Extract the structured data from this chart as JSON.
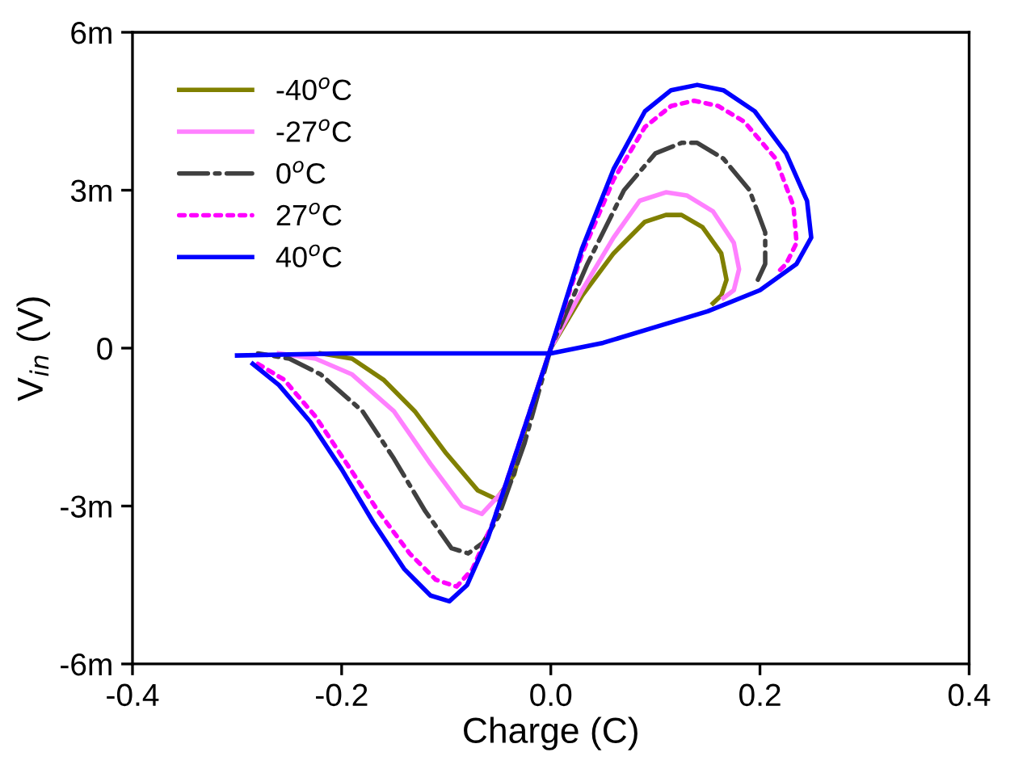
{
  "chart_data": {
    "type": "line",
    "xlabel": "Charge (C)",
    "ylabel": "V$_{in}$ (V)",
    "xlim": [
      -0.4,
      0.4
    ],
    "ylim": [
      -6,
      6
    ],
    "xticks": [
      {
        "value": -0.4,
        "label": "-0.4"
      },
      {
        "value": -0.2,
        "label": "-0.2"
      },
      {
        "value": 0.0,
        "label": "0.0"
      },
      {
        "value": 0.2,
        "label": "0.2"
      },
      {
        "value": 0.4,
        "label": "0.4"
      }
    ],
    "yticks": [
      {
        "value": -6,
        "label": "-6m"
      },
      {
        "value": -3,
        "label": "-3m"
      },
      0,
      {
        "value": 3,
        "label": "3m"
      },
      {
        "value": 6,
        "label": "6m"
      }
    ],
    "grid": false,
    "legend": "top left",
    "marker": "none",
    "series": [
      {
        "name": "-40$^{o}$C",
        "color": "#808000",
        "line_style": "solid",
        "x": [
          0.155,
          0.163,
          0.168,
          0.163,
          0.145,
          0.125,
          0.11,
          0.09,
          0.06,
          0.03,
          0,
          -0.02,
          -0.035,
          -0.052,
          -0.07,
          -0.1,
          -0.13,
          -0.16,
          -0.19,
          -0.22
        ],
        "values": [
          0.85,
          1.0,
          1.3,
          1.8,
          2.3,
          2.53,
          2.53,
          2.4,
          1.8,
          1.0,
          0,
          -1.2,
          -2.4,
          -2.87,
          -2.7,
          -2.0,
          -1.2,
          -0.6,
          -0.2,
          -0.1
        ]
      },
      {
        "name": "-27$^{o}$C",
        "color": "#ff80ff",
        "line_style": "solid",
        "x": [
          0.165,
          0.175,
          0.18,
          0.175,
          0.155,
          0.13,
          0.11,
          0.085,
          0.06,
          0.03,
          0,
          -0.025,
          -0.045,
          -0.066,
          -0.085,
          -0.115,
          -0.15,
          -0.19,
          -0.225,
          -0.26
        ],
        "values": [
          0.95,
          1.1,
          1.5,
          2.0,
          2.6,
          2.9,
          2.96,
          2.8,
          2.1,
          1.1,
          0,
          -1.5,
          -2.7,
          -3.15,
          -3.0,
          -2.2,
          -1.2,
          -0.5,
          -0.2,
          -0.1
        ]
      },
      {
        "name": "0$^{o}$C",
        "color": "#404040",
        "line_style": "dashdot",
        "x": [
          0.198,
          0.205,
          0.205,
          0.19,
          0.165,
          0.14,
          0.125,
          0.1,
          0.07,
          0.035,
          0,
          -0.025,
          -0.05,
          -0.065,
          -0.079,
          -0.095,
          -0.12,
          -0.15,
          -0.18,
          -0.22,
          -0.25,
          -0.28
        ],
        "values": [
          1.3,
          1.6,
          2.2,
          3.0,
          3.6,
          3.9,
          3.9,
          3.7,
          3.0,
          1.6,
          0,
          -1.8,
          -3.2,
          -3.7,
          -3.9,
          -3.8,
          -3.1,
          -2.1,
          -1.2,
          -0.5,
          -0.2,
          -0.1
        ]
      },
      {
        "name": "27$^{o}$C",
        "color": "#ff00ff",
        "line_style": "dotted",
        "x": [
          -0.28,
          -0.255,
          -0.225,
          -0.195,
          -0.165,
          -0.135,
          -0.11,
          -0.09,
          -0.075,
          -0.055,
          -0.03,
          0,
          0.03,
          0.06,
          0.09,
          0.115,
          0.137,
          0.16,
          0.185,
          0.215,
          0.232,
          0.235,
          0.225,
          0.215
        ],
        "values": [
          -0.3,
          -0.6,
          -1.3,
          -2.2,
          -3.1,
          -3.9,
          -4.4,
          -4.53,
          -4.2,
          -3.3,
          -1.8,
          0,
          1.8,
          3.2,
          4.2,
          4.6,
          4.7,
          4.6,
          4.3,
          3.6,
          2.7,
          2.0,
          1.6,
          1.4
        ]
      },
      {
        "name": "40$^{o}$C",
        "color": "#0000ff",
        "line_style": "solid",
        "x": [
          -0.3,
          -0.2,
          -0.1,
          0,
          0.05,
          0.1,
          0.15,
          0.2,
          0.235,
          0.249,
          0.245,
          0.225,
          0.195,
          0.165,
          0.14,
          0.115,
          0.09,
          0.06,
          0.03,
          0,
          -0.03,
          -0.06,
          -0.08,
          -0.097,
          -0.115,
          -0.14,
          -0.17,
          -0.2,
          -0.23,
          -0.26,
          -0.285
        ],
        "values": [
          -0.14,
          -0.1,
          -0.1,
          -0.1,
          0.1,
          0.4,
          0.7,
          1.1,
          1.6,
          2.1,
          2.8,
          3.7,
          4.5,
          4.9,
          5.0,
          4.9,
          4.5,
          3.4,
          1.9,
          0,
          -1.8,
          -3.6,
          -4.5,
          -4.81,
          -4.7,
          -4.2,
          -3.3,
          -2.3,
          -1.4,
          -0.7,
          -0.3
        ]
      }
    ]
  }
}
